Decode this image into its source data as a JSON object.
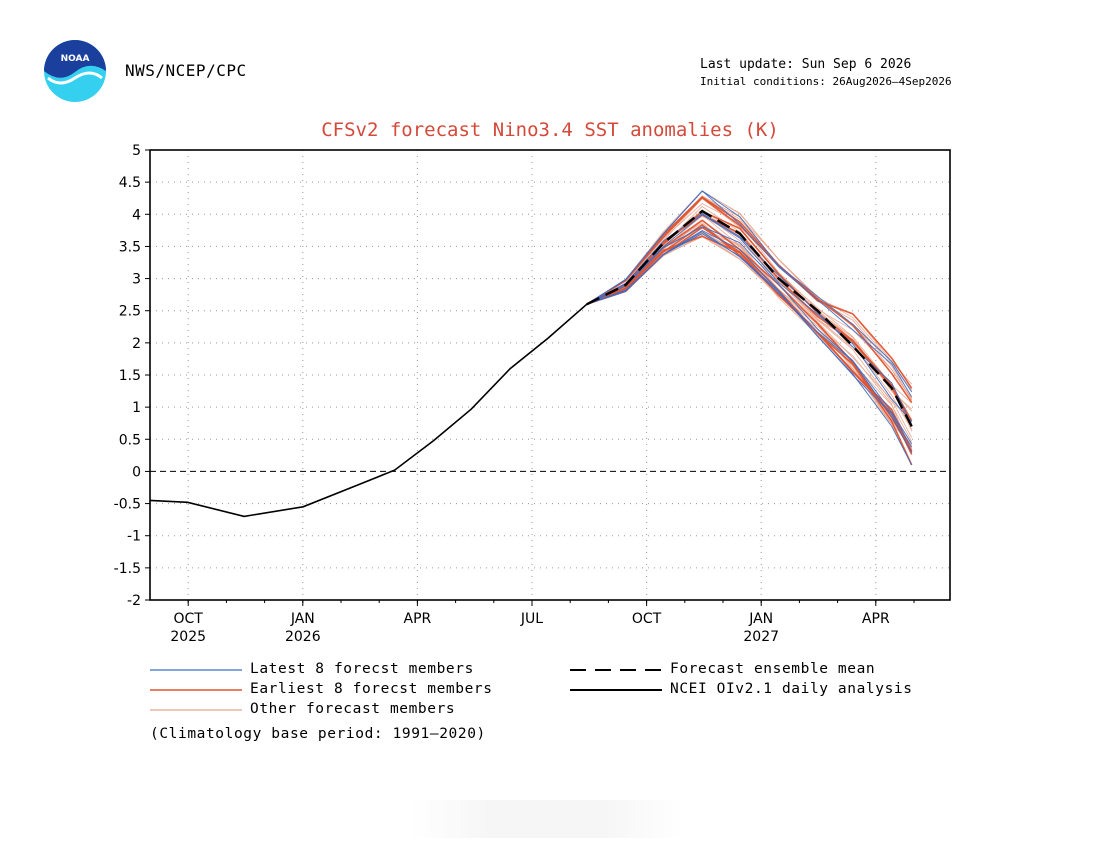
{
  "header": {
    "logo_text": "NOAA",
    "agency": "NWS/NCEP/CPC",
    "last_update": "Last update: Sun Sep  6 2026",
    "initial_conditions": "Initial conditions: 26Aug2026—4Sep2026"
  },
  "colors": {
    "title": "#d44a3a",
    "latest_members": "#3a6ec8",
    "earliest_members": "#e0532f",
    "other_members": "#e8a58c",
    "ensemble_mean": "#000000",
    "analysis": "#000000",
    "grid": "#9a9a9a"
  },
  "chart_data": {
    "type": "line",
    "title": "CFSv2 forecast Nino3.4 SST anomalies (K)",
    "ylim": [
      -2,
      5
    ],
    "yticks": [
      "5",
      "4.5",
      "4",
      "3.5",
      "3",
      "2.5",
      "2",
      "1.5",
      "1",
      "0.5",
      "0",
      "-0.5",
      "-1",
      "-1.5",
      "-2"
    ],
    "xlim_months": [
      "Sep 2025",
      "Apr 2027"
    ],
    "xticks": [
      {
        "month": "OCT",
        "year": "2025"
      },
      {
        "month": "JAN",
        "year": "2026"
      },
      {
        "month": "APR",
        "year": ""
      },
      {
        "month": "JUL",
        "year": ""
      },
      {
        "month": "OCT",
        "year": ""
      },
      {
        "month": "JAN",
        "year": "2027"
      },
      {
        "month": "APR",
        "year": ""
      }
    ],
    "grid": true,
    "zero_line": "dashed",
    "analysis": {
      "name": "NCEI OIv2.1 daily analysis",
      "x": [
        "2025-09-01",
        "2025-10-01",
        "2025-11-15",
        "2026-01-01",
        "2026-02-15",
        "2026-03-15",
        "2026-04-15",
        "2026-05-15",
        "2026-06-15",
        "2026-07-15",
        "2026-08-15",
        "2026-09-01"
      ],
      "y": [
        -0.45,
        -0.48,
        -0.7,
        -0.55,
        -0.2,
        0.02,
        0.48,
        0.97,
        1.6,
        2.07,
        2.6,
        2.8
      ]
    },
    "ensemble_mean": {
      "name": "Forecast ensemble mean",
      "x": [
        "2026-08-15",
        "2026-09-15",
        "2026-10-15",
        "2026-11-15",
        "2026-12-15",
        "2027-01-15",
        "2027-02-15",
        "2027-03-15",
        "2027-04-15",
        "2027-05-01"
      ],
      "y": [
        2.6,
        2.9,
        3.55,
        4.05,
        3.7,
        3.0,
        2.5,
        1.95,
        1.3,
        0.7
      ]
    },
    "member_groups": [
      {
        "name": "Latest 8 forecst members",
        "color_key": "latest_members",
        "count": 8
      },
      {
        "name": "Earliest 8 forecst members",
        "color_key": "earliest_members",
        "count": 8
      },
      {
        "name": "Other forecast members",
        "color_key": "other_members",
        "count": 24
      }
    ],
    "member_spread": {
      "x": [
        "2026-09-15",
        "2026-10-15",
        "2026-11-15",
        "2026-12-15",
        "2027-01-15",
        "2027-02-15",
        "2027-03-15",
        "2027-04-15",
        "2027-05-01"
      ],
      "low": [
        2.8,
        3.35,
        3.65,
        3.3,
        2.7,
        2.1,
        1.5,
        0.7,
        0.1
      ],
      "high": [
        3.0,
        3.75,
        4.4,
        4.05,
        3.3,
        2.75,
        2.45,
        1.8,
        1.4
      ]
    }
  },
  "legend": {
    "latest": "Latest 8 forecst members",
    "earliest": "Earliest 8 forecst members",
    "other": "Other forecast members",
    "mean": "Forecast ensemble mean",
    "analysis": "NCEI OIv2.1 daily analysis"
  },
  "footnote": "(Climatology base period: 1991—2020)"
}
